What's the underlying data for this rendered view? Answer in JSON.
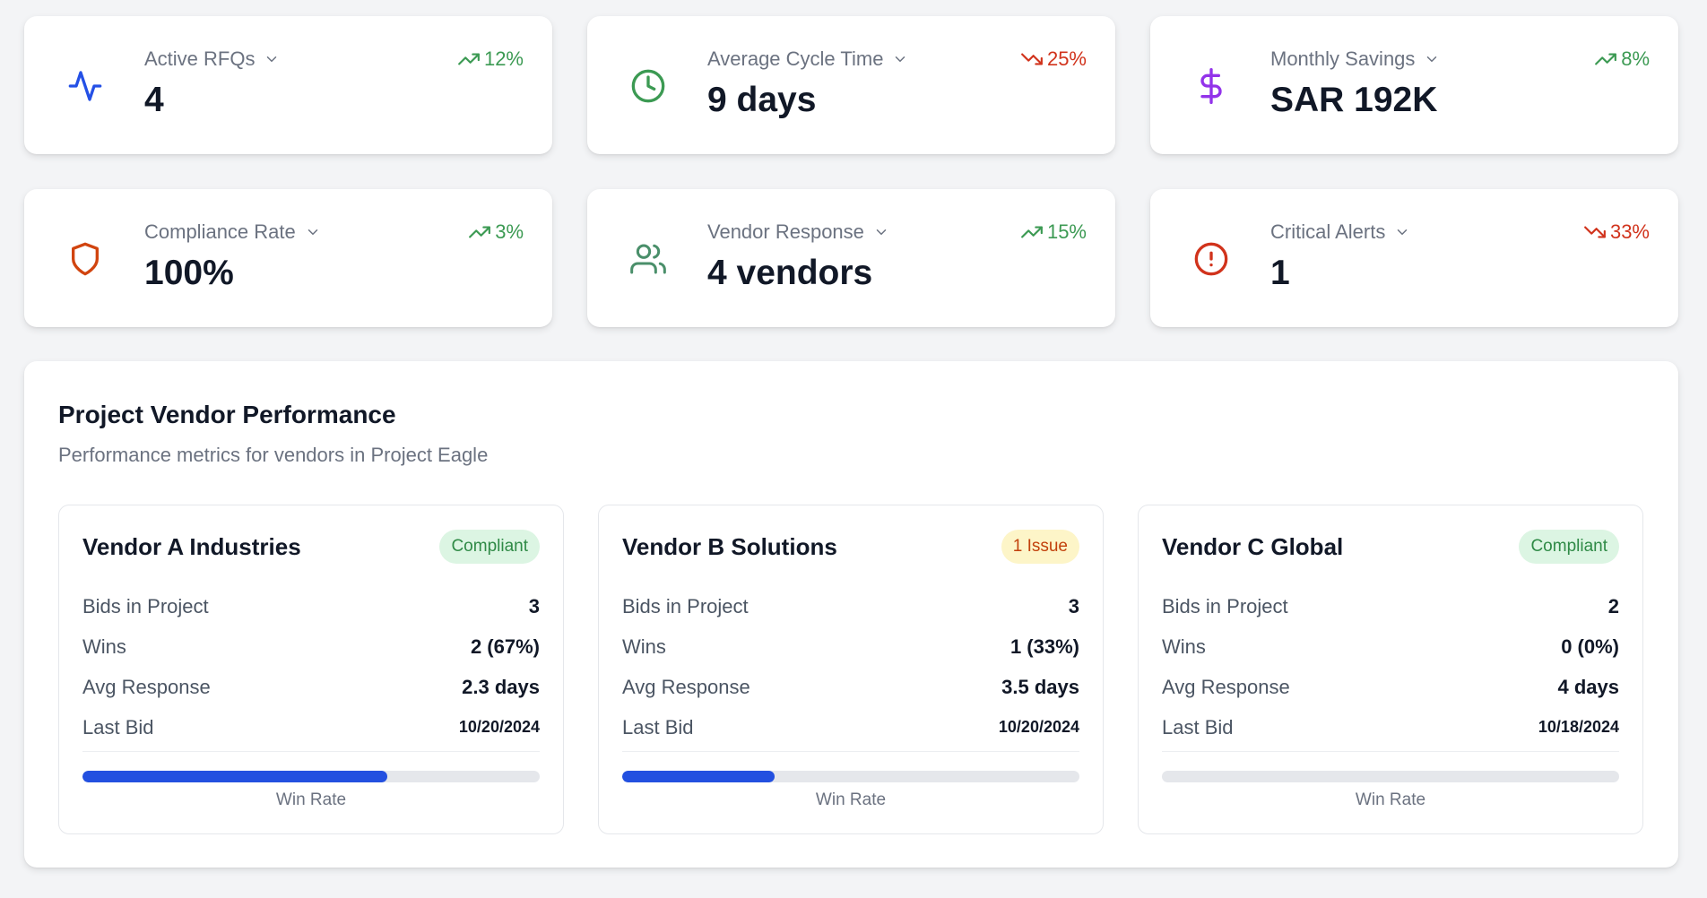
{
  "kpis": [
    {
      "label": "Active RFQs",
      "value": "4",
      "trend": "12%",
      "trend_dir": "up",
      "icon": "activity-icon",
      "icon_color": "#2450e6"
    },
    {
      "label": "Average Cycle Time",
      "value": "9 days",
      "trend": "25%",
      "trend_dir": "down",
      "icon": "clock-icon",
      "icon_color": "#3c9a53"
    },
    {
      "label": "Monthly Savings",
      "value": "SAR 192K",
      "trend": "8%",
      "trend_dir": "up",
      "icon": "dollar-icon",
      "icon_color": "#9333ea"
    },
    {
      "label": "Compliance Rate",
      "value": "100%",
      "trend": "3%",
      "trend_dir": "up",
      "icon": "shield-icon",
      "icon_color": "#d1440f"
    },
    {
      "label": "Vendor Response",
      "value": "4 vendors",
      "trend": "15%",
      "trend_dir": "up",
      "icon": "users-icon",
      "icon_color": "#4a8f6a"
    },
    {
      "label": "Critical Alerts",
      "value": "1",
      "trend": "33%",
      "trend_dir": "down",
      "icon": "alert-circle-icon",
      "icon_color": "#d1331c"
    }
  ],
  "performance": {
    "title": "Project Vendor Performance",
    "subtitle": "Performance metrics for vendors in Project Eagle",
    "stat_labels": {
      "bids": "Bids in Project",
      "wins": "Wins",
      "avg_response": "Avg Response",
      "last_bid": "Last Bid"
    },
    "win_rate_label": "Win Rate",
    "vendors": [
      {
        "name": "Vendor A Industries",
        "badge": "Compliant",
        "badge_type": "ok",
        "bids": "3",
        "wins": "2 (67%)",
        "avg_response": "2.3 days",
        "last_bid": "10/20/2024",
        "win_rate": 0.667
      },
      {
        "name": "Vendor B Solutions",
        "badge": "1 Issue",
        "badge_type": "warn",
        "bids": "3",
        "wins": "1 (33%)",
        "avg_response": "3.5 days",
        "last_bid": "10/20/2024",
        "win_rate": 0.333
      },
      {
        "name": "Vendor C Global",
        "badge": "Compliant",
        "badge_type": "ok",
        "bids": "2",
        "wins": "0 (0%)",
        "avg_response": "4 days",
        "last_bid": "10/18/2024",
        "win_rate": 0.0
      }
    ]
  }
}
